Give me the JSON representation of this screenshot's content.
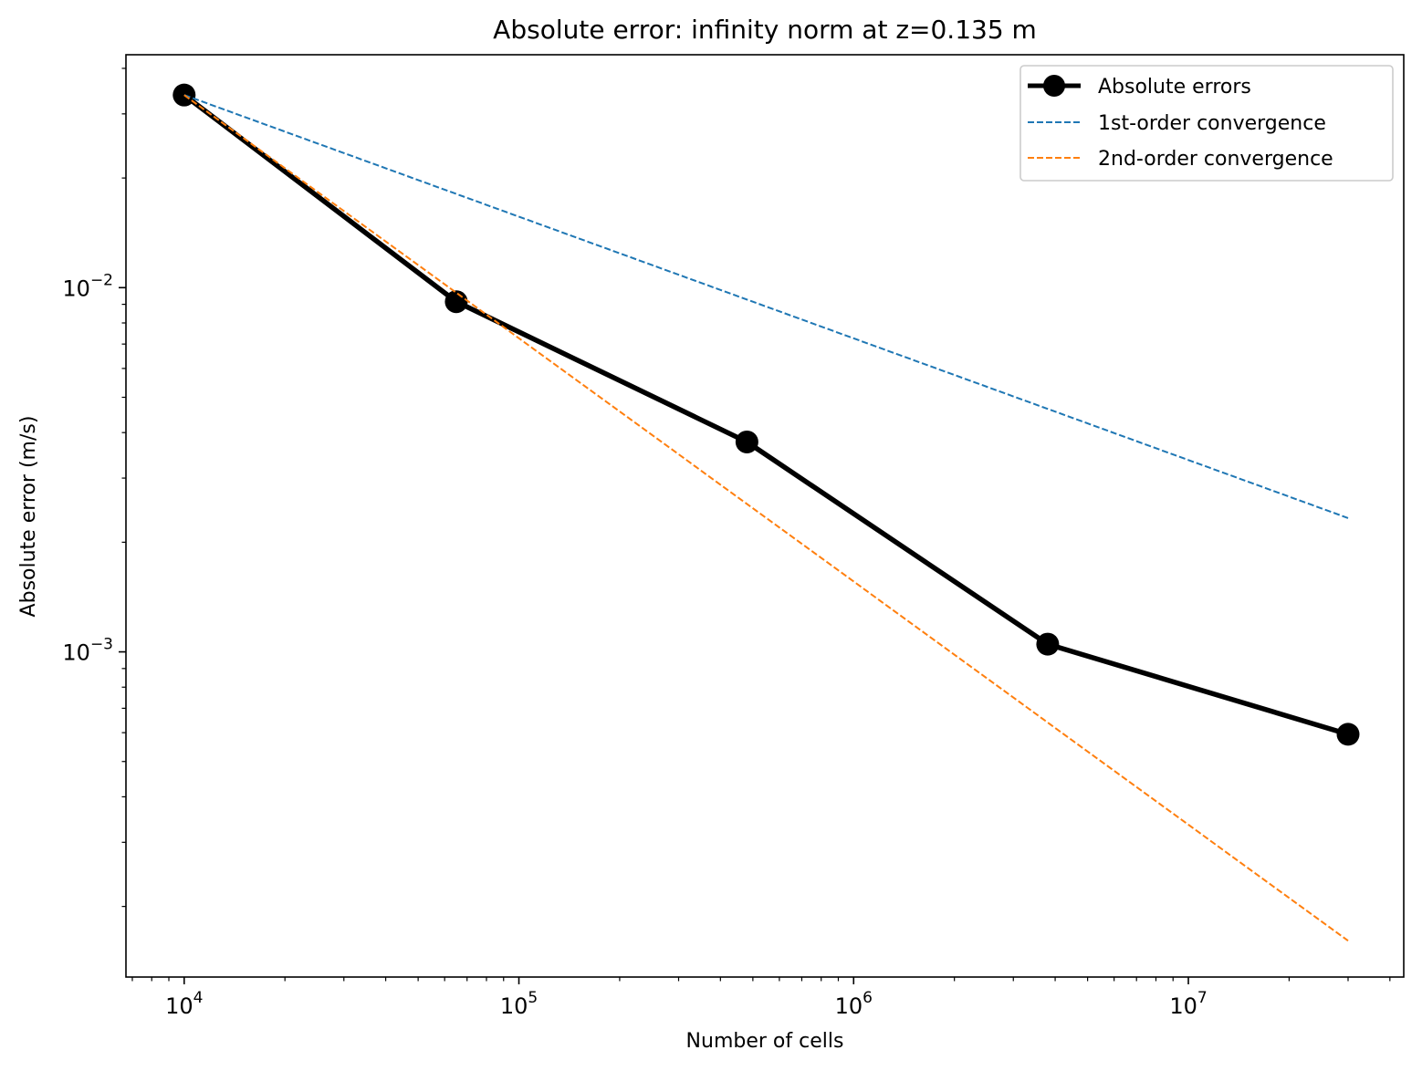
{
  "chart_data": {
    "type": "line",
    "title": "Absolute error: infinity norm at z=0.135 m",
    "xlabel": "Number of cells",
    "ylabel": "Absolute error (m/s)",
    "xscale": "log",
    "yscale": "log",
    "xlim": [
      6700,
      44000000
    ],
    "ylim": [
      0.000128,
      0.0436
    ],
    "grid": false,
    "legend_position": "top-right",
    "x_ticks": [
      {
        "value": 10000,
        "base": "10",
        "exp": "4"
      },
      {
        "value": 100000,
        "base": "10",
        "exp": "5"
      },
      {
        "value": 1000000,
        "base": "10",
        "exp": "6"
      },
      {
        "value": 10000000,
        "base": "10",
        "exp": "7"
      }
    ],
    "y_ticks": [
      {
        "value": 0.01,
        "base": "10",
        "exp": "−2"
      },
      {
        "value": 0.001,
        "base": "10",
        "exp": "−3"
      }
    ],
    "series": [
      {
        "name": "Absolute errors",
        "color": "#000000",
        "style": "solid",
        "marker": "circle",
        "x": [
          10000,
          65000,
          480000,
          3800000,
          30000000
        ],
        "y": [
          0.0338,
          0.00915,
          0.00377,
          0.00105,
          0.000594
        ]
      },
      {
        "name": "1st-order convergence",
        "color": "#1f77b4",
        "style": "dashed",
        "marker": "none",
        "x": [
          10000,
          30000000
        ],
        "y": [
          0.0338,
          0.00233
        ]
      },
      {
        "name": "2nd-order convergence",
        "color": "#ff7f0e",
        "style": "dashed",
        "marker": "none",
        "x": [
          10000,
          30000000
        ],
        "y": [
          0.0338,
          0.000161
        ]
      }
    ]
  }
}
